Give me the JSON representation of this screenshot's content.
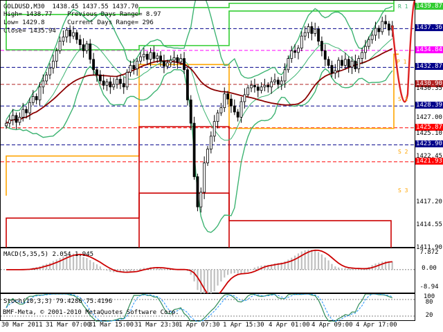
{
  "header": {
    "symbol_line": "GOLDUSD,M30  1438.45 1437.55 1437.70",
    "high_line": "High= 1438.77    Previous Days Range= 8.97",
    "low_line": "Low= 1429.8      Current Days Range= 296",
    "close_line": "Close= 1435.94"
  },
  "indicators": {
    "macd_label": "MACD(5,35,5) 2.054 1.945",
    "stoch_label": "Stoch(10,3,3) 79.4286 75.4196",
    "copyright": "BMF-Meta, © 2001-2010 MetaQuotes Software Corp."
  },
  "price_axis": {
    "labels": [
      "1439.87",
      "1437.36",
      "1434.84",
      "1432.87",
      "1430.90",
      "1430.35",
      "1428.39",
      "1427.00",
      "1425.87",
      "1425.10",
      "1423.90",
      "1422.45",
      "1421.93",
      "1417.20",
      "1414.55",
      "1411.90"
    ],
    "tag_colors": {
      "1439.87": "#32cd32",
      "1437.36": "#00008b",
      "1434.84": "#ff00ff",
      "1432.87": "#00008b",
      "1430.90": "#b22222",
      "1428.39": "#00008b",
      "1425.87": "#ff0000",
      "1423.90": "#00008b",
      "1421.93": "#ff0000"
    }
  },
  "level_labels": {
    "r1": "R 1",
    "p": "P 1",
    "s1": "S 1",
    "s2": "S 2",
    "s3": "S 3"
  },
  "macd_axis": {
    "top": "7.872",
    "mid": "0.00",
    "bottom": "-8.94"
  },
  "stoch_axis": {
    "top": "100",
    "upper": "80",
    "lower": "20"
  },
  "time_axis": [
    "30 Mar 2011",
    "31 Mar 07:00",
    "31 Mar 15:00",
    "31 Mar 23:30",
    "1 Apr 07:30",
    "1 Apr 15:30",
    "4 Apr 01:00",
    "4 Apr 09:00",
    "4 Apr 17:00"
  ],
  "colors": {
    "candles": "#000000",
    "bollinger": "#3cb371",
    "ma": "#8b0000",
    "pivot_green": "#32cd32",
    "pivot_orange": "#ffa500",
    "pivot_red": "#cc0000",
    "forecast": "#dd2222",
    "macd_hist": "#c0c0c0",
    "macd_signal": "#cc0000",
    "stoch_main": "#2e8b57",
    "stoch_signal": "#1e90ff"
  },
  "chart_data": {
    "type": "candlestick",
    "symbol": "GOLDUSD",
    "timeframe": "M30",
    "ylim": [
      1411.9,
      1440.6
    ],
    "closes": [
      1426.4,
      1426.8,
      1427.3,
      1426.5,
      1427.1,
      1428.0,
      1427.6,
      1428.8,
      1429.5,
      1429.1,
      1430.6,
      1431.3,
      1432.0,
      1432.8,
      1433.6,
      1434.8,
      1435.9,
      1436.4,
      1437.2,
      1436.5,
      1436.9,
      1436.1,
      1435.5,
      1434.8,
      1435.6,
      1433.8,
      1432.6,
      1432.0,
      1431.3,
      1430.8,
      1431.2,
      1430.6,
      1430.9,
      1431.5,
      1431.0,
      1430.6,
      1432.3,
      1433.1,
      1432.7,
      1433.6,
      1434.1,
      1434.4,
      1433.8,
      1434.6,
      1433.9,
      1434.2,
      1433.6,
      1433.0,
      1433.4,
      1433.7,
      1434.0,
      1433.5,
      1433.9,
      1432.6,
      1429.1,
      1426.4,
      1420.2,
      1416.7,
      1418.4,
      1421.8,
      1423.4,
      1424.9,
      1426.6,
      1427.6,
      1428.2,
      1429.8,
      1429.2,
      1428.4,
      1427.7,
      1427.1,
      1428.9,
      1429.7,
      1430.5,
      1430.8,
      1430.6,
      1430.2,
      1430.6,
      1430.8,
      1430.6,
      1431.2,
      1431.4,
      1430.9,
      1431.3,
      1432.6,
      1433.9,
      1434.8,
      1434.6,
      1435.1,
      1436.5,
      1436.9,
      1437.6,
      1436.8,
      1437.3,
      1435.9,
      1434.8,
      1433.8,
      1433.1,
      1432.2,
      1432.5,
      1433.7,
      1433.1,
      1433.8,
      1432.9,
      1433.6,
      1432.7,
      1433.9,
      1434.6,
      1435.3,
      1436.1,
      1436.6,
      1437.4,
      1437.0,
      1438.2,
      1437.9,
      1437.2,
      1437.7
    ]
  }
}
